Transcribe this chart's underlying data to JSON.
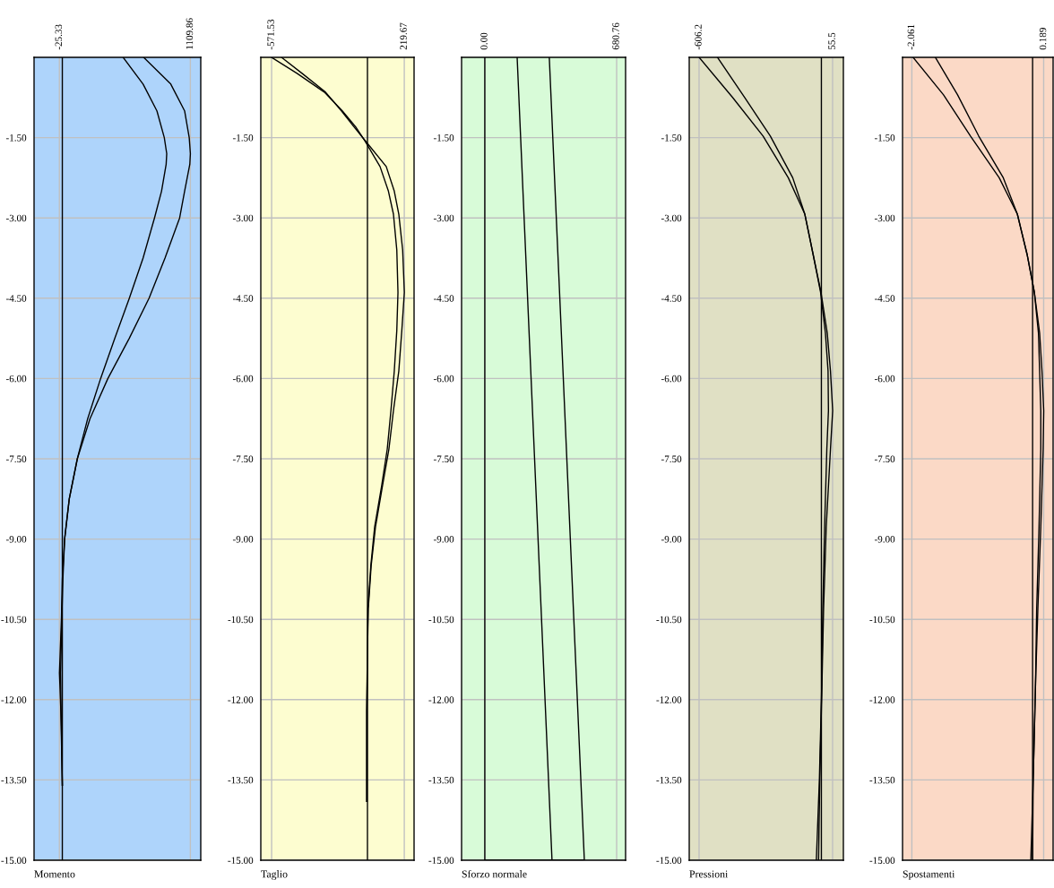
{
  "chart_data": [
    {
      "type": "line",
      "orientation": "horizontal",
      "xlabel": "Momento",
      "xlim": [
        -245,
        1200
      ],
      "xticks": [
        -25.33,
        1109.86
      ],
      "ylim": [
        -15,
        0
      ],
      "yticks": [
        {
          "value": -15,
          "label": "-15.00"
        },
        {
          "value": -13.5,
          "label": "-13.50"
        },
        {
          "value": -12,
          "label": "-12.00"
        },
        {
          "value": -10.5,
          "label": "-10.50"
        },
        {
          "value": -9,
          "label": "-9.00"
        },
        {
          "value": -7.5,
          "label": "-7.50"
        },
        {
          "value": -6,
          "label": "-6.00"
        },
        {
          "value": -4.5,
          "label": "-4.50"
        },
        {
          "value": -3,
          "label": "-3.00"
        },
        {
          "value": -1.5,
          "label": "-1.50"
        }
      ],
      "grid": true,
      "legend": false,
      "marker": "none",
      "line_style": "solid",
      "ref_lines": [
        {
          "axis": "x",
          "value": 0,
          "color": "#000000"
        }
      ],
      "series": [
        {
          "color": "#000000",
          "x": [
            0,
            -0.5,
            -1,
            -1.5,
            -1.8,
            -2,
            -2.5,
            -3,
            -3.75,
            -4.5,
            -5.25,
            -6,
            -6.75,
            -7.5,
            -8.25,
            -9,
            -9.75,
            -10.5,
            -11.5,
            -12.5,
            -13.6
          ],
          "values": [
            527,
            700,
            820,
            884,
            905,
            900,
            860,
            799,
            700,
            581,
            455,
            332,
            220,
            130,
            60,
            20,
            0,
            -8,
            -25,
            -8,
            0
          ]
        },
        {
          "color": "#000000",
          "x": [
            0,
            -0.5,
            -1,
            -1.5,
            -1.8,
            -2,
            -2.5,
            -3,
            -3.75,
            -4.5,
            -5.25,
            -6,
            -6.75,
            -7.5,
            -8.25,
            -9,
            -9.75,
            -10.5,
            -11.5,
            -12.5,
            -13.6
          ],
          "values": [
            705,
            940,
            1060,
            1100,
            1110,
            1105,
            1060,
            1017,
            890,
            752,
            580,
            395,
            240,
            130,
            60,
            20,
            5,
            -5,
            -15,
            -10,
            0
          ]
        }
      ]
    },
    {
      "type": "line",
      "orientation": "horizontal",
      "xlabel": "Taglio",
      "xlim": [
        -636,
        278
      ],
      "xticks": [
        -571.53,
        219.67
      ],
      "ylim": [
        -15,
        0
      ],
      "yticks": [
        {
          "value": -15,
          "label": "-15.00"
        },
        {
          "value": -13.5,
          "label": "-13.50"
        },
        {
          "value": -12,
          "label": "-12.00"
        },
        {
          "value": -10.5,
          "label": "-10.50"
        },
        {
          "value": -9,
          "label": "-9.00"
        },
        {
          "value": -7.5,
          "label": "-7.50"
        },
        {
          "value": -6,
          "label": "-6.00"
        },
        {
          "value": -4.5,
          "label": "-4.50"
        },
        {
          "value": -3,
          "label": "-3.00"
        },
        {
          "value": -1.5,
          "label": "-1.50"
        }
      ],
      "grid": true,
      "legend": false,
      "marker": "none",
      "line_style": "solid",
      "ref_lines": [
        {
          "axis": "x",
          "value": 0,
          "color": "#000000"
        }
      ],
      "series": [
        {
          "color": "#000000",
          "x": [
            0,
            -0.3,
            -0.65,
            -1,
            -1.3,
            -1.57,
            -2.04,
            -2.5,
            -2.93,
            -3.6,
            -4.39,
            -5.1,
            -5.86,
            -6.6,
            -7.32,
            -8,
            -8.77,
            -9.5,
            -10.3,
            -11.1,
            -12.2,
            -13.9
          ],
          "values": [
            -572,
            -420,
            -257,
            -150,
            -70,
            -13,
            75,
            125,
            155,
            175,
            182,
            175,
            160,
            140,
            118,
            85,
            43,
            20,
            3,
            0,
            -3,
            -3
          ]
        },
        {
          "color": "#000000",
          "x": [
            0,
            -0.3,
            -0.65,
            -1,
            -1.3,
            -1.57,
            -2.04,
            -2.5,
            -2.93,
            -3.6,
            -4.39,
            -5.1,
            -5.86,
            -6.6,
            -7.32,
            -8,
            -8.77,
            -9.5,
            -10.3,
            -11.1,
            -12.2,
            -13.9
          ],
          "values": [
            -513,
            -390,
            -250,
            -155,
            -80,
            -10,
            112,
            160,
            187,
            210,
            220,
            205,
            187,
            155,
            128,
            90,
            48,
            22,
            5,
            0,
            -5,
            -5
          ]
        }
      ]
    },
    {
      "type": "line",
      "orientation": "horizontal",
      "xlabel": "Sforzo normale",
      "xlim": [
        -120,
        727
      ],
      "xticks": [
        {
          "value": 0,
          "label": "0.00"
        },
        680.76
      ],
      "ylim": [
        -15,
        0
      ],
      "yticks": [
        {
          "value": -15,
          "label": "-15.00"
        },
        {
          "value": -13.5,
          "label": "-13.50"
        },
        {
          "value": -12,
          "label": "-12.00"
        },
        {
          "value": -10.5,
          "label": "-10.50"
        },
        {
          "value": -9,
          "label": "-9.00"
        },
        {
          "value": -7.5,
          "label": "-7.50"
        },
        {
          "value": -6,
          "label": "-6.00"
        },
        {
          "value": -4.5,
          "label": "-4.50"
        },
        {
          "value": -3,
          "label": "-3.00"
        },
        {
          "value": -1.5,
          "label": "-1.50"
        }
      ],
      "grid": true,
      "legend": false,
      "marker": "none",
      "line_style": "solid",
      "ref_lines": [
        {
          "axis": "x",
          "value": 0,
          "color": "#000000"
        }
      ],
      "series": [
        {
          "color": "#000000",
          "x": [
            0,
            -15
          ],
          "values": [
            167,
            347
          ]
        },
        {
          "color": "#000000",
          "x": [
            0,
            -15,
            -15
          ],
          "values": [
            333,
            514,
            0
          ]
        }
      ]
    },
    {
      "type": "line",
      "orientation": "horizontal",
      "xlabel": "Pressioni",
      "xlim": [
        -655,
        109
      ],
      "xticks": [
        -606.2,
        55.5
      ],
      "ylim": [
        -15,
        0
      ],
      "yticks": [
        {
          "value": -15,
          "label": "-15.00"
        },
        {
          "value": -13.5,
          "label": "-13.50"
        },
        {
          "value": -12,
          "label": "-12.00"
        },
        {
          "value": -10.5,
          "label": "-10.50"
        },
        {
          "value": -9,
          "label": "-9.00"
        },
        {
          "value": -7.5,
          "label": "-7.50"
        },
        {
          "value": -6,
          "label": "-6.00"
        },
        {
          "value": -4.5,
          "label": "-4.50"
        },
        {
          "value": -3,
          "label": "-3.00"
        },
        {
          "value": -1.5,
          "label": "-1.50"
        }
      ],
      "grid": true,
      "legend": false,
      "marker": "none",
      "line_style": "solid",
      "ref_lines": [
        {
          "axis": "x",
          "value": 0,
          "color": "#000000"
        }
      ],
      "series": [
        {
          "color": "#000000",
          "x": [
            0,
            -0.75,
            -1.47,
            -2.25,
            -2.93,
            -3.7,
            -4.39,
            -5.15,
            -5.86,
            -6.6,
            -7.32,
            -8.77,
            -10.3,
            -11.7,
            -13.5,
            -15
          ],
          "values": [
            -606,
            -440,
            -289,
            -164,
            -82,
            -40,
            -4,
            20,
            33,
            35,
            27,
            16,
            7,
            2,
            -10,
            -25
          ]
        },
        {
          "color": "#000000",
          "x": [
            0,
            -0.75,
            -1.47,
            -2.25,
            -2.93,
            -3.7,
            -4.39,
            -5.15,
            -5.86,
            -6.6,
            -7.32,
            -8.77,
            -10.3,
            -11.7,
            -13.5,
            -15
          ],
          "values": [
            -515,
            -380,
            -253,
            -142,
            -82,
            -40,
            -2,
            29,
            45,
            56,
            45,
            24,
            11,
            3,
            -8,
            -14
          ]
        }
      ]
    },
    {
      "type": "line",
      "orientation": "horizontal",
      "xlabel": "Spostamenti",
      "xlim": [
        -2.22,
        0.35
      ],
      "xticks": [
        -2.061,
        0.189
      ],
      "ylim": [
        -15,
        0
      ],
      "yticks": [
        {
          "value": -15,
          "label": "-15.00"
        },
        {
          "value": -13.5,
          "label": "-13.50"
        },
        {
          "value": -12,
          "label": "-12.00"
        },
        {
          "value": -10.5,
          "label": "-10.50"
        },
        {
          "value": -9,
          "label": "-9.00"
        },
        {
          "value": -7.5,
          "label": "-7.50"
        },
        {
          "value": -6,
          "label": "-6.00"
        },
        {
          "value": -4.5,
          "label": "-4.50"
        },
        {
          "value": -3,
          "label": "-3.00"
        },
        {
          "value": -1.5,
          "label": "-1.50"
        }
      ],
      "grid": true,
      "legend": false,
      "marker": "none",
      "line_style": "solid",
      "ref_lines": [
        {
          "axis": "x",
          "value": 0,
          "color": "#000000"
        }
      ],
      "series": [
        {
          "color": "#000000",
          "x": [
            0,
            -0.7,
            -1.47,
            -2.25,
            -2.93,
            -3.7,
            -4.39,
            -5.15,
            -5.86,
            -6.6,
            -7.32,
            -8.77,
            -10.3,
            -11.7,
            -13.5,
            -15
          ],
          "values": [
            -2.04,
            -1.52,
            -1.06,
            -0.57,
            -0.26,
            -0.09,
            0.03,
            0.1,
            0.12,
            0.14,
            0.14,
            0.11,
            0.07,
            0.05,
            0.01,
            -0.03
          ]
        },
        {
          "color": "#000000",
          "x": [
            0,
            -0.7,
            -1.47,
            -2.25,
            -2.93,
            -3.7,
            -4.39,
            -5.15,
            -5.86,
            -6.6,
            -7.32,
            -8.77,
            -10.3,
            -11.7,
            -13.5,
            -15
          ],
          "values": [
            -1.66,
            -1.28,
            -0.92,
            -0.5,
            -0.26,
            -0.09,
            0.03,
            0.12,
            0.16,
            0.19,
            0.18,
            0.14,
            0.09,
            0.05,
            0.01,
            0
          ]
        }
      ]
    }
  ]
}
